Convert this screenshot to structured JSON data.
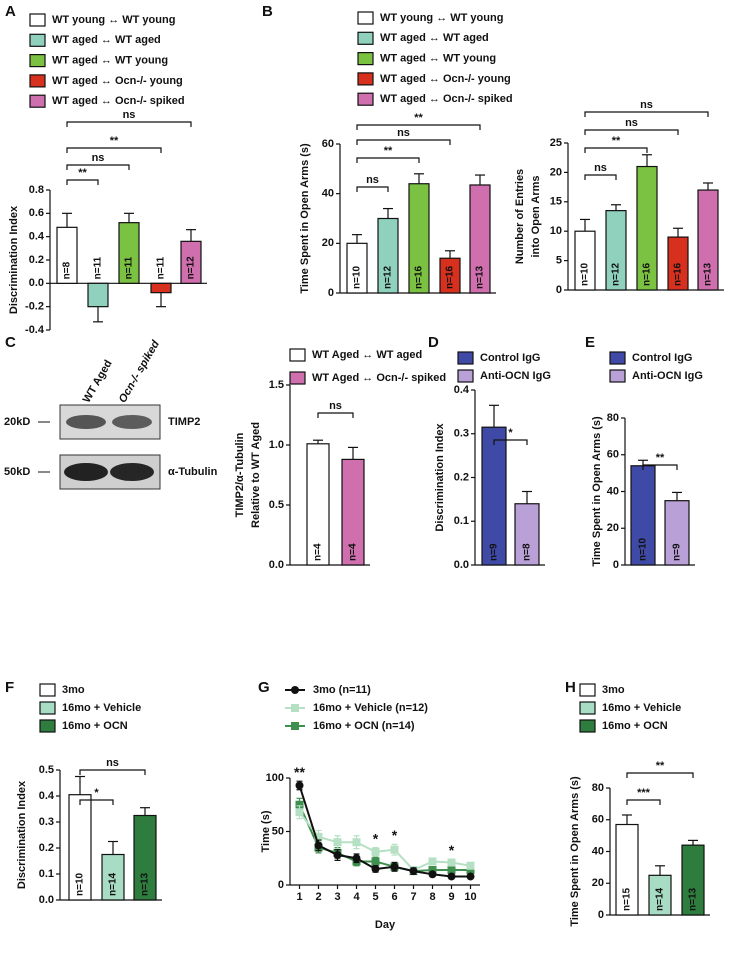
{
  "blot": {
    "lanes": [
      "WT Aged",
      "Ocn-/- spiked"
    ],
    "bands": [
      {
        "size": "20kD",
        "protein": "TIMP2"
      },
      {
        "size": "50kD",
        "protein": "α-Tubulin"
      }
    ]
  },
  "chart_data": [
    {
      "type": "bar",
      "panel": "A",
      "categories": [
        "WT young ↔ WT young",
        "WT aged ↔ WT aged",
        "WT aged ↔ WT young",
        "WT aged ↔ Ocn-/- young",
        "WT aged ↔ Ocn-/- spiked"
      ],
      "colors": [
        "#ffffff",
        "#8fd1bd",
        "#7cc242",
        "#d7301f",
        "#cf6fae"
      ],
      "values": [
        0.48,
        -0.2,
        0.52,
        -0.08,
        0.36
      ],
      "errors": [
        0.12,
        0.13,
        0.08,
        0.12,
        0.1
      ],
      "n_labels": [
        "n=8",
        "n=11",
        "n=11",
        "n=11",
        "n=12"
      ],
      "ylabel": "Discrimination Index",
      "ylim": [
        -0.4,
        0.8
      ],
      "yticks": [
        -0.4,
        -0.2,
        {
          "value": 0,
          "label": "0.0"
        },
        0.2,
        0.4,
        0.6,
        0.8
      ],
      "brackets": [
        {
          "between": [
            0,
            1
          ],
          "label": "**"
        },
        {
          "between": [
            0,
            2
          ],
          "label": "ns"
        },
        {
          "between": [
            0,
            3
          ],
          "label": "**"
        },
        {
          "between": [
            0,
            4
          ],
          "label": "ns"
        }
      ]
    },
    {
      "type": "bar",
      "panel": "B",
      "categories": [
        "WT young ↔ WT young",
        "WT aged ↔ WT aged",
        "WT aged ↔ WT young",
        "WT aged ↔ Ocn-/- young",
        "WT aged ↔ Ocn-/- spiked"
      ],
      "colors": [
        "#ffffff",
        "#8fd1bd",
        "#7cc242",
        "#d7301f",
        "#cf6fae"
      ],
      "values": [
        20,
        30,
        44,
        14,
        43.5
      ],
      "errors": [
        3.5,
        4,
        4,
        3,
        4
      ],
      "n_labels": [
        "n=10",
        "n=12",
        "n=16",
        "n=16",
        "n=13"
      ],
      "ylabel": "Time Spent in Open Arms (s)",
      "ylim": [
        0,
        60
      ],
      "yticks": [
        0,
        20,
        40,
        60
      ],
      "brackets": [
        {
          "between": [
            0,
            1
          ],
          "label": "ns"
        },
        {
          "between": [
            0,
            2
          ],
          "label": "**"
        },
        {
          "between": [
            0,
            3
          ],
          "label": "ns"
        },
        {
          "between": [
            0,
            4
          ],
          "label": "**"
        }
      ]
    },
    {
      "type": "bar",
      "colors": [
        "#ffffff",
        "#8fd1bd",
        "#7cc242",
        "#d7301f",
        "#cf6fae"
      ],
      "values": [
        10,
        13.5,
        21,
        9,
        17
      ],
      "errors": [
        2,
        1,
        2,
        1.5,
        1.2
      ],
      "n_labels": [
        "n=10",
        "n=12",
        "n=16",
        "n=16",
        "n=13"
      ],
      "ylabel": [
        "Number of Entries",
        "into Open Arms"
      ],
      "ylim": [
        0,
        25
      ],
      "yticks": [
        0,
        5,
        10,
        15,
        20,
        25
      ],
      "brackets": [
        {
          "between": [
            0,
            1
          ],
          "label": "ns"
        },
        {
          "between": [
            0,
            2
          ],
          "label": "**"
        },
        {
          "between": [
            0,
            3
          ],
          "label": "ns"
        },
        {
          "between": [
            0,
            4
          ],
          "label": "ns"
        }
      ]
    },
    {
      "type": "bar",
      "panel": "C",
      "categories": [
        "WT Aged ↔ WT aged",
        "WT Aged ↔ Ocn-/- spiked"
      ],
      "colors": [
        "#ffffff",
        "#cf6fae"
      ],
      "values": [
        1.01,
        0.88
      ],
      "errors": [
        0.03,
        0.1
      ],
      "n_labels": [
        "n=4",
        "n=4"
      ],
      "ylabel": [
        "TIMP2/α-Tubulin",
        "Relative to WT Aged"
      ],
      "ylim": [
        0,
        1.5
      ],
      "yticks": [
        {
          "value": 0,
          "label": "0.0"
        },
        0.5,
        {
          "value": 1,
          "label": "1.0"
        },
        1.5
      ],
      "brackets": [
        {
          "between": [
            0,
            1
          ],
          "label": "ns"
        }
      ]
    },
    {
      "type": "bar",
      "panel": "D",
      "categories": [
        "Control IgG",
        "Anti-OCN IgG"
      ],
      "colors": [
        "#3f4aa6",
        "#b9a0d6"
      ],
      "values": [
        0.315,
        0.14
      ],
      "errors": [
        0.05,
        0.028
      ],
      "n_labels": [
        "n=9",
        "n=8"
      ],
      "ylabel": "Discrimination Index",
      "ylim": [
        0,
        0.4
      ],
      "yticks": [
        {
          "value": 0,
          "label": "0.0"
        },
        0.1,
        0.2,
        0.3,
        0.4
      ],
      "brackets": [
        {
          "between": [
            0,
            1
          ],
          "label": "*"
        }
      ]
    },
    {
      "type": "bar",
      "panel": "E",
      "categories": [
        "Control IgG",
        "Anti-OCN IgG"
      ],
      "colors": [
        "#3f4aa6",
        "#b9a0d6"
      ],
      "values": [
        54,
        35
      ],
      "errors": [
        3,
        4.5
      ],
      "n_labels": [
        "n=10",
        "n=9"
      ],
      "ylabel": "Time Spent in Open Arms (s)",
      "ylim": [
        0,
        80
      ],
      "yticks": [
        0,
        20,
        40,
        60,
        80
      ],
      "brackets": [
        {
          "between": [
            0,
            1
          ],
          "label": "**"
        }
      ]
    },
    {
      "type": "bar",
      "panel": "F",
      "categories": [
        "3mo",
        "16mo + Vehicle",
        "16mo + OCN"
      ],
      "colors": [
        "#ffffff",
        "#a8dcc4",
        "#2e7d3e"
      ],
      "values": [
        0.405,
        0.175,
        0.325
      ],
      "errors": [
        0.07,
        0.05,
        0.03
      ],
      "n_labels": [
        "n=10",
        "n=14",
        "n=13"
      ],
      "ylabel": "Discrimination Index",
      "ylim": [
        0,
        0.5
      ],
      "yticks": [
        {
          "value": 0,
          "label": "0.0"
        },
        0.1,
        0.2,
        0.3,
        0.4,
        0.5
      ],
      "brackets": [
        {
          "between": [
            0,
            1
          ],
          "label": "*"
        },
        {
          "between": [
            0,
            2
          ],
          "label": "ns"
        }
      ]
    },
    {
      "type": "line",
      "panel": "G",
      "x": [
        1,
        2,
        3,
        4,
        5,
        6,
        7,
        8,
        9,
        10
      ],
      "xlim": [
        0.5,
        10.5
      ],
      "xticks": [
        1,
        2,
        3,
        4,
        5,
        6,
        7,
        8,
        9,
        10
      ],
      "xlabel": "Day",
      "ylabel": "Time (s)",
      "ylim": [
        0,
        100
      ],
      "yticks": [
        0,
        50,
        100
      ],
      "series": [
        {
          "name": "3mo (n=11)",
          "color": "#111111",
          "marker": "circle",
          "values": [
            93,
            37,
            28,
            25,
            15,
            17,
            13,
            10,
            8,
            8
          ],
          "errors": [
            4,
            5,
            5,
            4,
            3,
            4,
            3,
            2,
            2,
            2
          ]
        },
        {
          "name": "16mo + Vehicle (n=12)",
          "color": "#b5e0c3",
          "marker": "square",
          "values": [
            68,
            45,
            40,
            40,
            31,
            33,
            14,
            22,
            21,
            18
          ],
          "errors": [
            6,
            6,
            6,
            6,
            4,
            5,
            3,
            3,
            3,
            3
          ]
        },
        {
          "name": "16mo + OCN (n=14)",
          "color": "#3f8f4f",
          "marker": "square",
          "values": [
            75,
            35,
            30,
            22,
            22,
            17,
            13,
            14,
            14,
            14
          ],
          "errors": [
            6,
            5,
            5,
            4,
            4,
            4,
            3,
            3,
            3,
            3
          ]
        }
      ],
      "annotations": [
        {
          "x": 1,
          "label": "**"
        },
        {
          "x": 5,
          "label": "*"
        },
        {
          "x": 6,
          "label": "*"
        },
        {
          "x": 9,
          "label": "*"
        }
      ]
    },
    {
      "type": "bar",
      "panel": "H",
      "categories": [
        "3mo",
        "16mo + Vehicle",
        "16mo + OCN"
      ],
      "colors": [
        "#ffffff",
        "#a8dcc4",
        "#2e7d3e"
      ],
      "values": [
        57,
        25,
        44
      ],
      "errors": [
        6,
        6,
        3
      ],
      "n_labels": [
        "n=15",
        "n=14",
        "n=13"
      ],
      "ylabel": "Time Spent in Open Arms (s)",
      "ylim": [
        0,
        80
      ],
      "yticks": [
        0,
        20,
        40,
        60,
        80
      ],
      "brackets": [
        {
          "between": [
            0,
            1
          ],
          "label": "***"
        },
        {
          "between": [
            0,
            2
          ],
          "label": "**"
        }
      ]
    }
  ]
}
